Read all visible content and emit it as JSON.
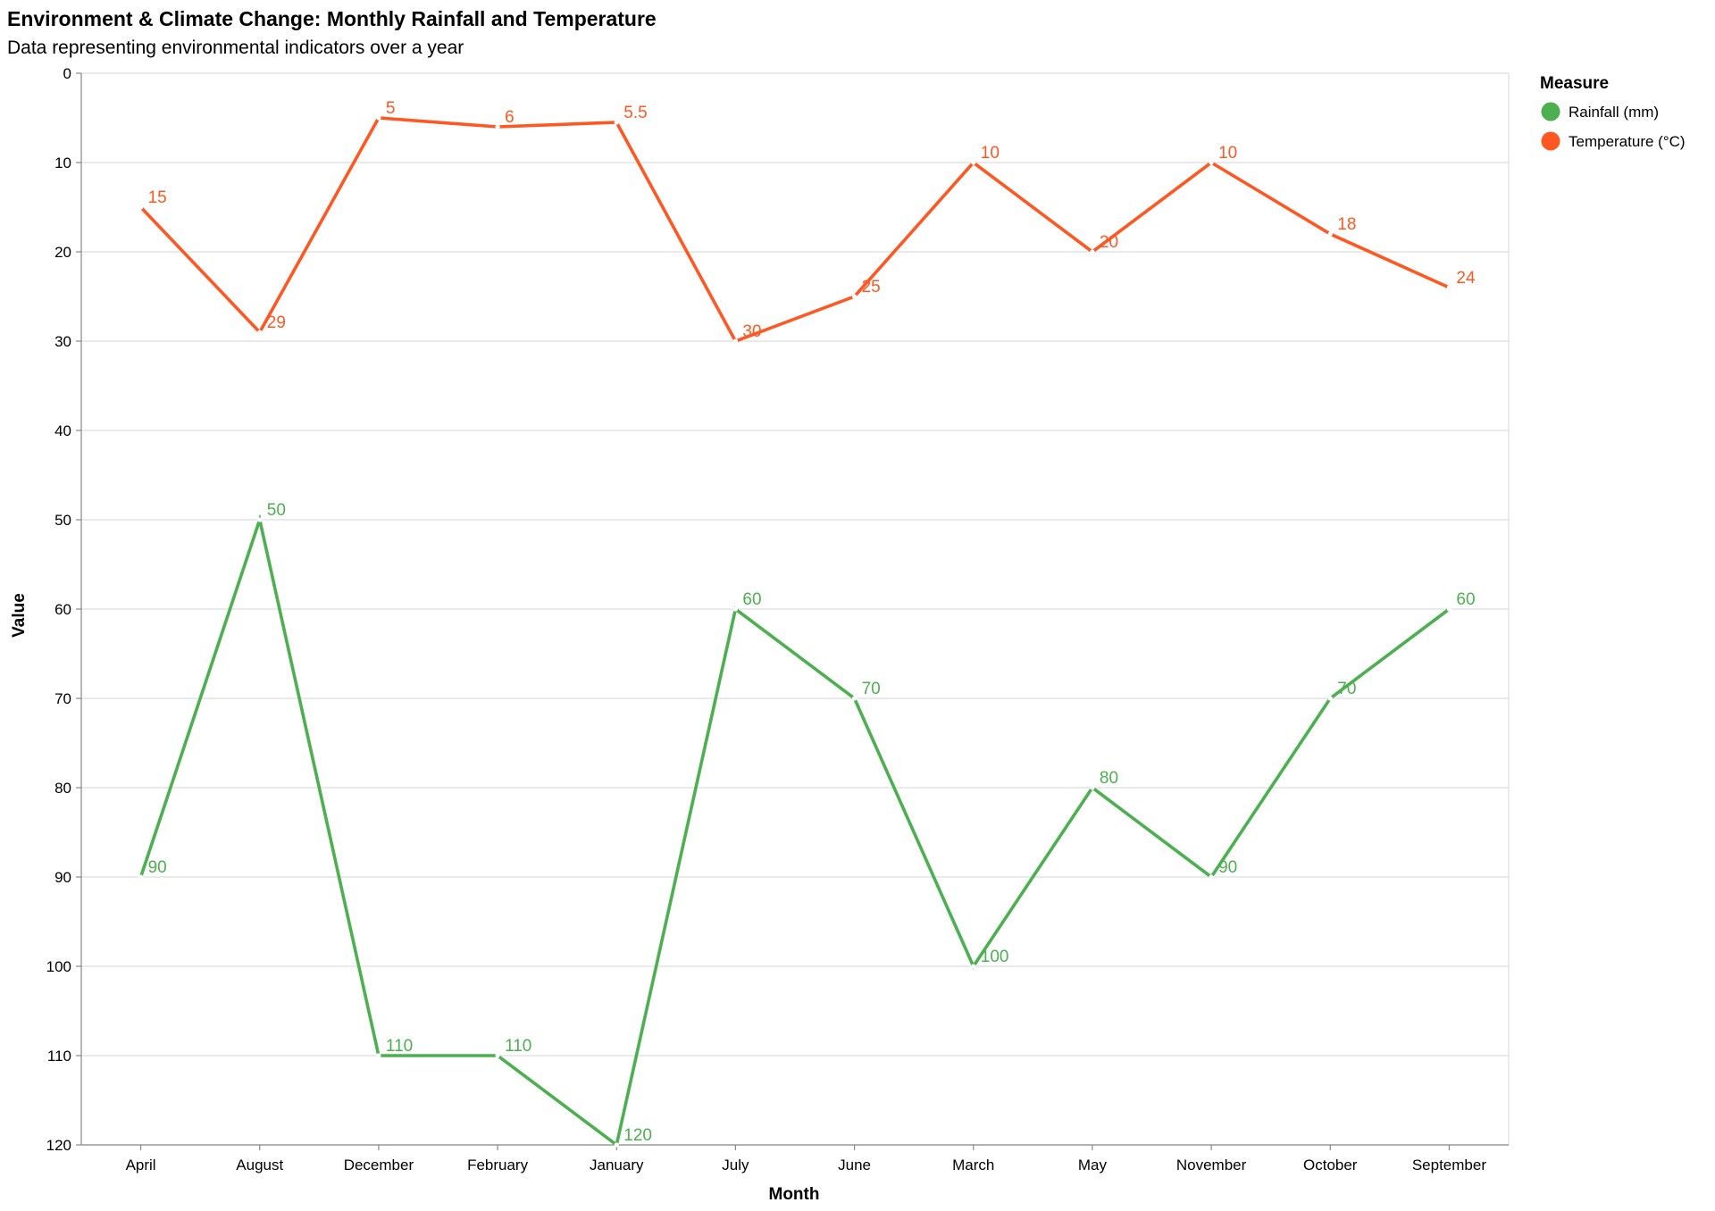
{
  "title": "Environment & Climate Change: Monthly Rainfall and Temperature",
  "subtitle": "Data representing environmental indicators over a year",
  "legend": {
    "title": "Measure"
  },
  "chart_data": {
    "type": "line",
    "title": "Environment & Climate Change: Monthly Rainfall and Temperature",
    "subtitle": "Data representing environmental indicators over a year",
    "xlabel": "Month",
    "ylabel": "Value",
    "categories": [
      "April",
      "August",
      "December",
      "February",
      "January",
      "July",
      "June",
      "March",
      "May",
      "November",
      "October",
      "September"
    ],
    "ylim": [
      0,
      120
    ],
    "y_reversed": true,
    "y_ticks": [
      0,
      10,
      20,
      30,
      40,
      50,
      60,
      70,
      80,
      90,
      100,
      110,
      120
    ],
    "grid": true,
    "legend_position": "top-right",
    "series": [
      {
        "name": "Rainfall (mm)",
        "color": "#4CAF50",
        "values": [
          90,
          50,
          110,
          110,
          120,
          60,
          70,
          100,
          80,
          90,
          70,
          60
        ]
      },
      {
        "name": "Temperature (°C)",
        "color": "#FF5722",
        "values": [
          15,
          29,
          5,
          6,
          5.5,
          30,
          25,
          10,
          20,
          10,
          18,
          24
        ]
      }
    ]
  }
}
